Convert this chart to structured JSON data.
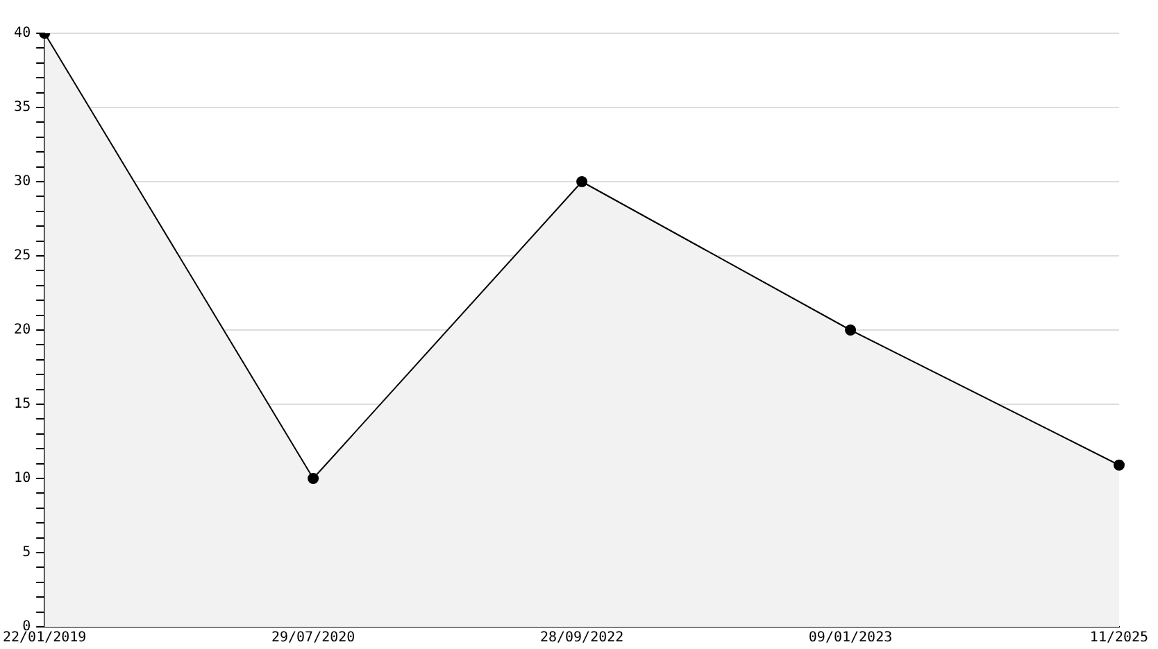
{
  "chart_data": {
    "type": "area",
    "categories": [
      "22/01/2019",
      "29/07/2020",
      "28/09/2022",
      "09/01/2023",
      "11/2025"
    ],
    "series": [
      {
        "color": "#000000",
        "values": [
          40,
          10,
          30,
          20,
          10.9
        ]
      }
    ],
    "ylim": [
      0,
      40
    ],
    "yticks": [
      0,
      {
        "value": 1,
        "label": null
      },
      {
        "value": 2,
        "label": null
      },
      {
        "value": 3,
        "label": null
      },
      {
        "value": 4,
        "label": null
      },
      5,
      {
        "value": 6,
        "label": null
      },
      {
        "value": 7,
        "label": null
      },
      {
        "value": 8,
        "label": null
      },
      {
        "value": 9,
        "label": null
      },
      10,
      {
        "value": 11,
        "label": null
      },
      {
        "value": 12,
        "label": null
      },
      {
        "value": 13,
        "label": null
      },
      {
        "value": 14,
        "label": null
      },
      15,
      {
        "value": 16,
        "label": null
      },
      {
        "value": 17,
        "label": null
      },
      {
        "value": 18,
        "label": null
      },
      {
        "value": 19,
        "label": null
      },
      20,
      {
        "value": 21,
        "label": null
      },
      {
        "value": 22,
        "label": null
      },
      {
        "value": 23,
        "label": null
      },
      {
        "value": 24,
        "label": null
      },
      25,
      {
        "value": 26,
        "label": null
      },
      {
        "value": 27,
        "label": null
      },
      {
        "value": 28,
        "label": null
      },
      {
        "value": 29,
        "label": null
      },
      30,
      {
        "value": 31,
        "label": null
      },
      {
        "value": 32,
        "label": null
      },
      {
        "value": 33,
        "label": null
      },
      {
        "value": 34,
        "label": null
      },
      35,
      {
        "value": 36,
        "label": null
      },
      {
        "value": 37,
        "label": null
      },
      {
        "value": 38,
        "label": null
      },
      {
        "value": 39,
        "label": null
      },
      40
    ],
    "grid": "y",
    "marker": "circle",
    "line_style": "solid",
    "legend": false
  }
}
